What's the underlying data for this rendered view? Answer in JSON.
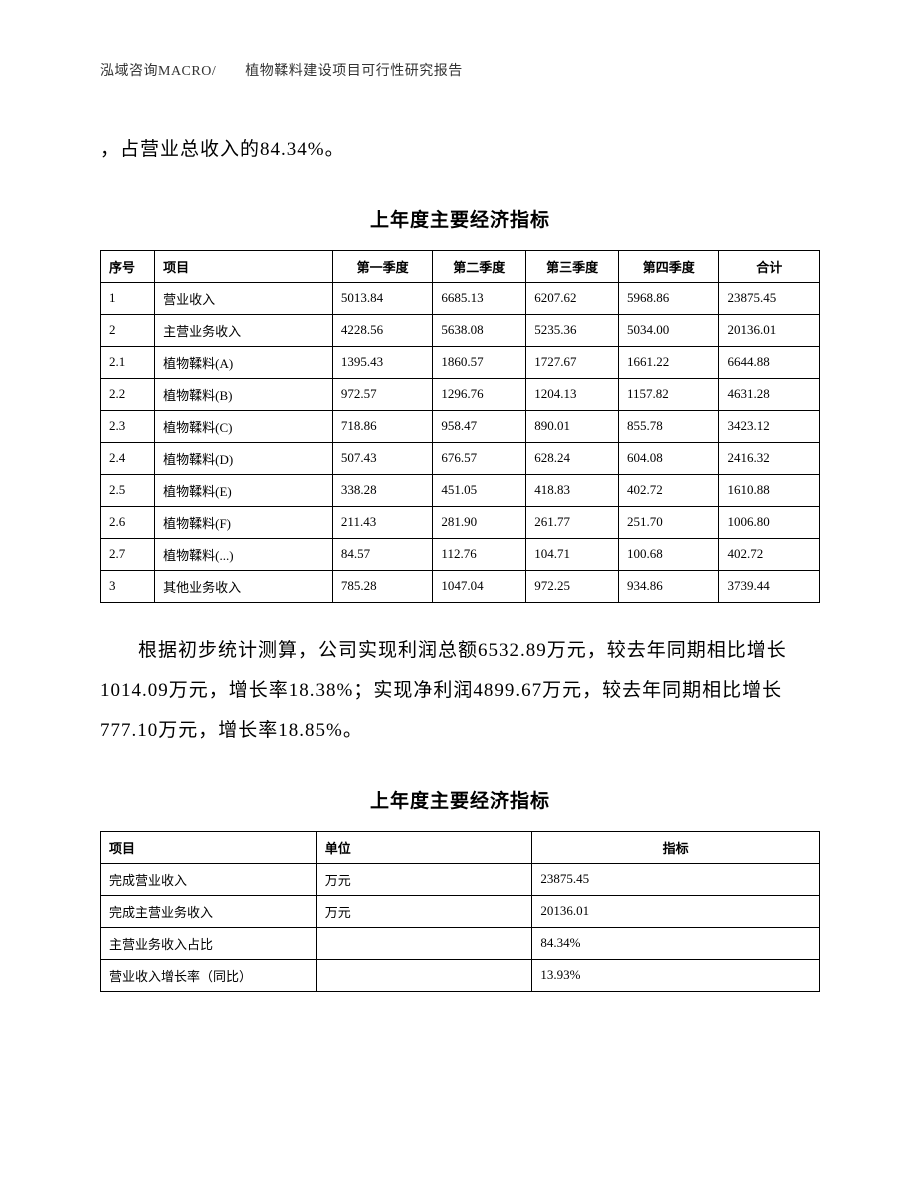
{
  "header": "泓域咨询MACRO/　　植物鞣料建设项目可行性研究报告",
  "para1": "，占营业总收入的84.34%。",
  "table1_title": "上年度主要经济指标",
  "table1": {
    "headers": [
      "序号",
      "项目",
      "第一季度",
      "第二季度",
      "第三季度",
      "第四季度",
      "合计"
    ],
    "rows": [
      [
        "1",
        "营业收入",
        "5013.84",
        "6685.13",
        "6207.62",
        "5968.86",
        "23875.45"
      ],
      [
        "2",
        "主营业务收入",
        "4228.56",
        "5638.08",
        "5235.36",
        "5034.00",
        "20136.01"
      ],
      [
        "2.1",
        "植物鞣料(A)",
        "1395.43",
        "1860.57",
        "1727.67",
        "1661.22",
        "6644.88"
      ],
      [
        "2.2",
        "植物鞣料(B)",
        "972.57",
        "1296.76",
        "1204.13",
        "1157.82",
        "4631.28"
      ],
      [
        "2.3",
        "植物鞣料(C)",
        "718.86",
        "958.47",
        "890.01",
        "855.78",
        "3423.12"
      ],
      [
        "2.4",
        "植物鞣料(D)",
        "507.43",
        "676.57",
        "628.24",
        "604.08",
        "2416.32"
      ],
      [
        "2.5",
        "植物鞣料(E)",
        "338.28",
        "451.05",
        "418.83",
        "402.72",
        "1610.88"
      ],
      [
        "2.6",
        "植物鞣料(F)",
        "211.43",
        "281.90",
        "261.77",
        "251.70",
        "1006.80"
      ],
      [
        "2.7",
        "植物鞣料(...)",
        "84.57",
        "112.76",
        "104.71",
        "100.68",
        "402.72"
      ],
      [
        "3",
        "其他业务收入",
        "785.28",
        "1047.04",
        "972.25",
        "934.86",
        "3739.44"
      ]
    ]
  },
  "para2": "根据初步统计测算，公司实现利润总额6532.89万元，较去年同期相比增长1014.09万元，增长率18.38%；实现净利润4899.67万元，较去年同期相比增长777.10万元，增长率18.85%。",
  "table2_title": "上年度主要经济指标",
  "table2": {
    "headers": [
      "项目",
      "单位",
      "指标"
    ],
    "rows": [
      [
        "完成营业收入",
        "万元",
        "23875.45"
      ],
      [
        "完成主营业务收入",
        "万元",
        "20136.01"
      ],
      [
        "主营业务收入占比",
        "",
        "84.34%"
      ],
      [
        "营业收入增长率（同比）",
        "",
        "13.93%"
      ]
    ]
  }
}
